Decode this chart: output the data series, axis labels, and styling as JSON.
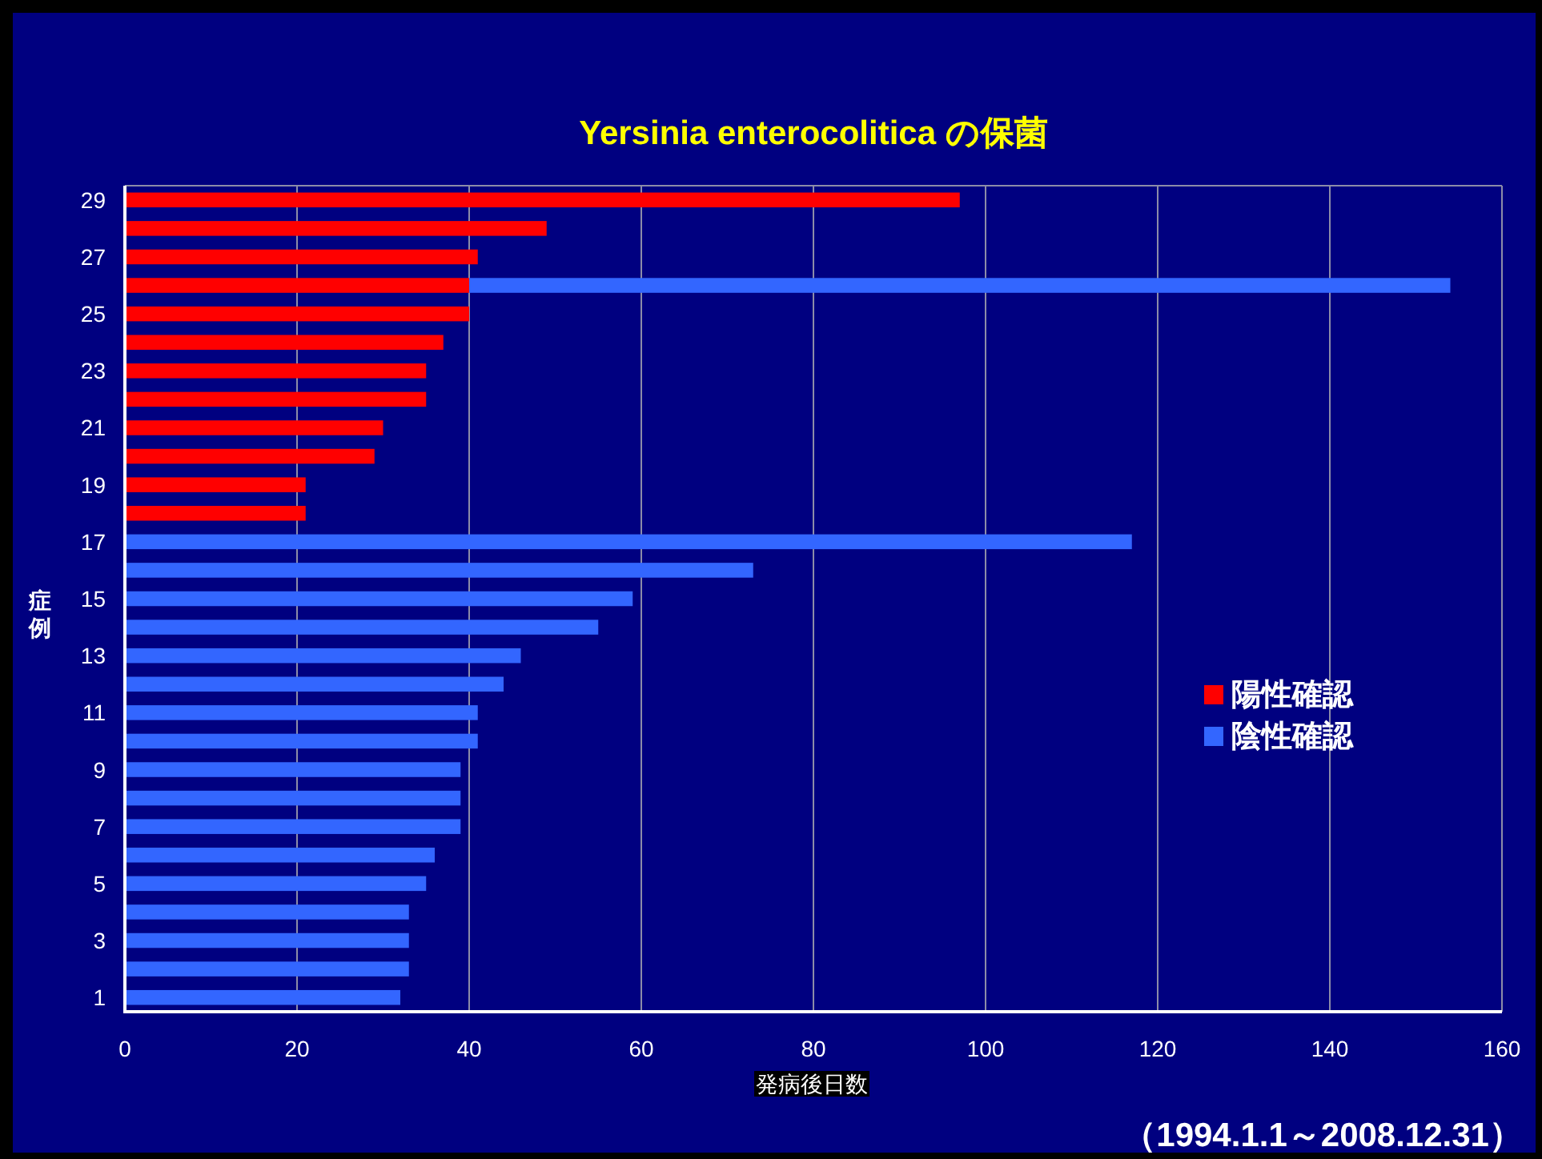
{
  "chart_data": {
    "type": "bar",
    "orientation": "horizontal",
    "stacked": true,
    "title": "Yersinia enterocolitica の保菌",
    "xlabel": "発病後日数",
    "ylabel": "症例",
    "annotations": [
      "（1994.1.1～2008.12.31）"
    ],
    "categories": [
      "29",
      null,
      "27",
      null,
      "25",
      null,
      "23",
      null,
      "21",
      null,
      "19",
      null,
      "17",
      null,
      "15",
      null,
      "13",
      null,
      "11",
      null,
      "9",
      null,
      "7",
      null,
      "5",
      null,
      "3",
      null,
      "1"
    ],
    "series": [
      {
        "name": "陽性確認",
        "color": "#ff0000",
        "values": [
          97,
          49,
          41,
          40,
          40,
          37,
          35,
          35,
          30,
          29,
          21,
          21,
          null,
          null,
          null,
          null,
          null,
          null,
          null,
          null,
          null,
          null,
          null,
          null,
          null,
          null,
          null,
          null,
          null
        ]
      },
      {
        "name": "陰性確認",
        "color": "#3366ff",
        "values": [
          null,
          null,
          null,
          114,
          null,
          null,
          null,
          null,
          null,
          null,
          null,
          null,
          117,
          73,
          59,
          55,
          46,
          44,
          41,
          41,
          39,
          39,
          39,
          36,
          35,
          33,
          33,
          33,
          32
        ]
      }
    ],
    "xlim": [
      0,
      160
    ],
    "xticks": [
      0,
      20,
      40,
      60,
      80,
      100,
      120,
      140,
      160
    ],
    "grid": "x",
    "legend": "right"
  }
}
